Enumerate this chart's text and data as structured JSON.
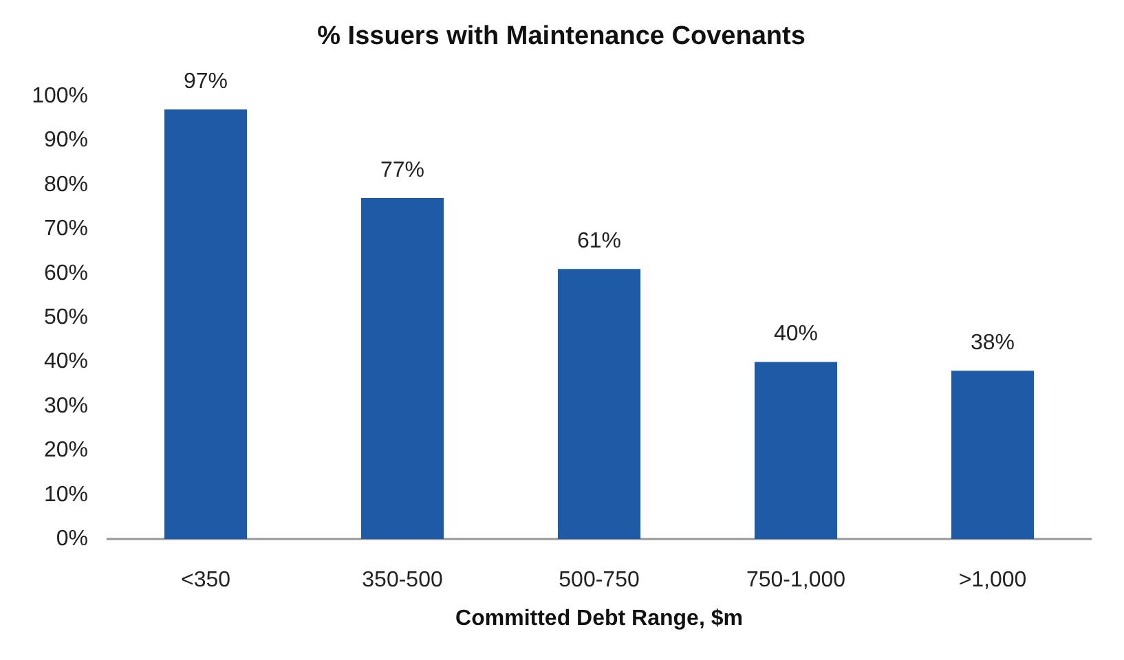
{
  "chart_data": {
    "type": "bar",
    "title": "% Issuers with Maintenance Covenants",
    "xlabel": "Committed Debt Range, $m",
    "categories": [
      "<350",
      "350-500",
      "500-750",
      "750-1,000",
      ">1,000"
    ],
    "values": [
      97,
      77,
      61,
      40,
      38
    ],
    "value_labels": [
      "97%",
      "77%",
      "61%",
      "40%",
      "38%"
    ],
    "color": "#1f5aa6",
    "ylim": [
      0,
      100
    ],
    "yticks": [
      {
        "value": 0,
        "label": "0%"
      },
      {
        "value": 10,
        "label": "10%"
      },
      {
        "value": 20,
        "label": "20%"
      },
      {
        "value": 30,
        "label": "30%"
      },
      {
        "value": 40,
        "label": "40%"
      },
      {
        "value": 50,
        "label": "50%"
      },
      {
        "value": 60,
        "label": "60%"
      },
      {
        "value": 70,
        "label": "70%"
      },
      {
        "value": 80,
        "label": "80%"
      },
      {
        "value": 90,
        "label": "90%"
      },
      {
        "value": 100,
        "label": "100%"
      }
    ],
    "grid": false
  }
}
